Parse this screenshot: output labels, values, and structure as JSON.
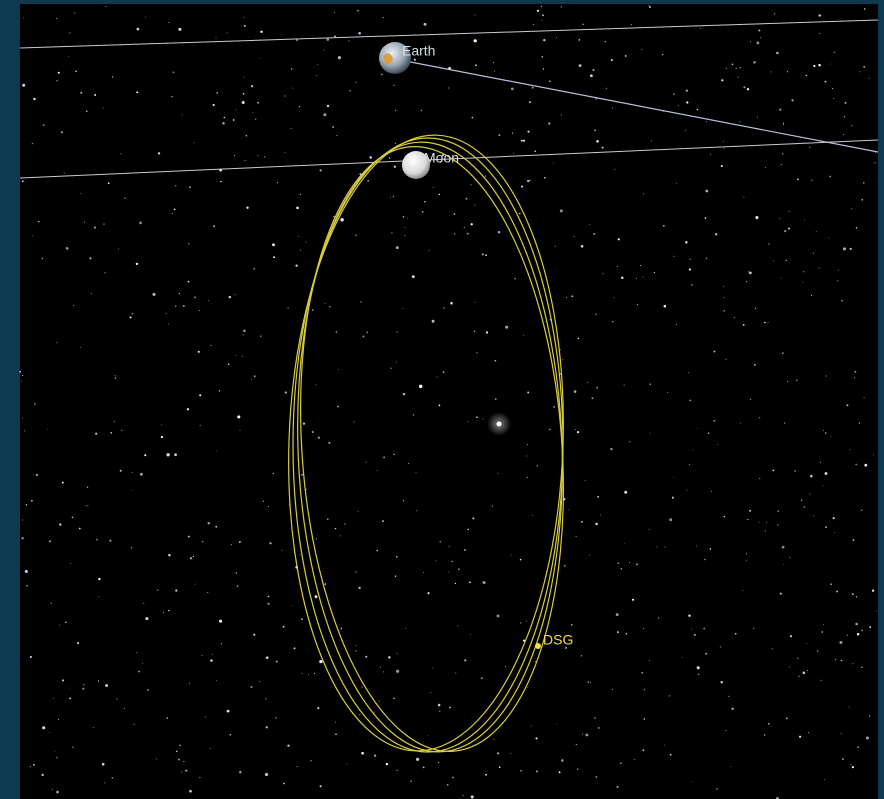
{
  "labels": {
    "earth": "Earth",
    "moon": "Moon",
    "spacecraft": "DSG"
  }
}
